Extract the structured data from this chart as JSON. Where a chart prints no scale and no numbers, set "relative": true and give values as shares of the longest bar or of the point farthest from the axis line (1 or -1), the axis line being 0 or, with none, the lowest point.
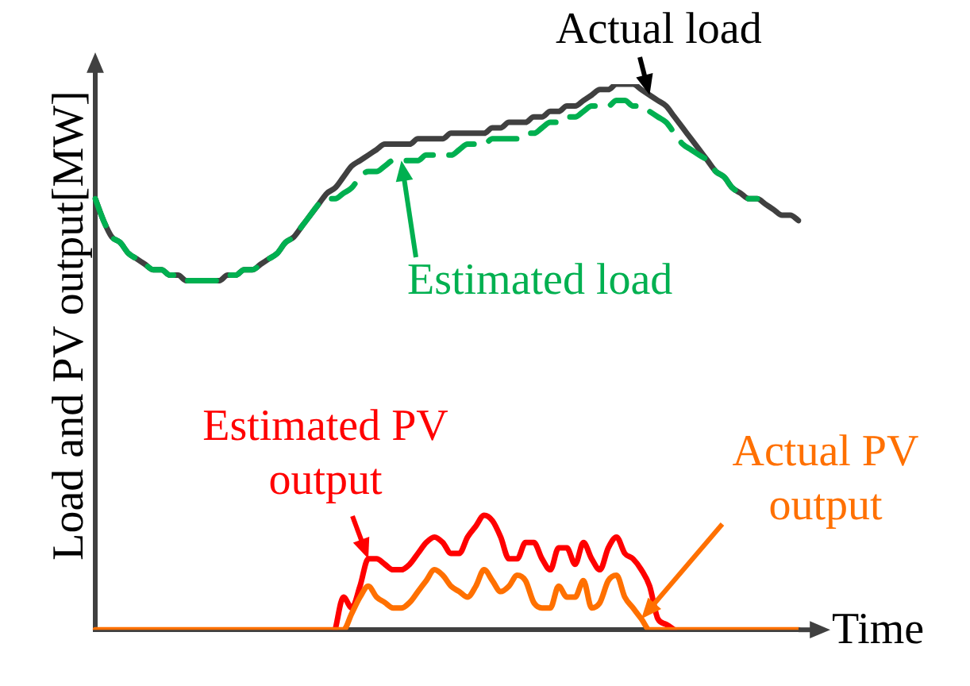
{
  "chart_data": {
    "type": "line",
    "relative": true,
    "xlabel": "Time",
    "ylabel": "Load and PV output[MW]",
    "marker": "none",
    "grid": false,
    "categories": [
      null,
      null,
      null,
      null,
      null,
      null,
      null,
      null,
      null,
      null,
      null,
      null,
      null,
      null,
      null,
      null,
      null,
      null,
      null,
      null,
      null,
      null,
      null,
      null,
      null,
      null,
      null,
      null,
      null,
      null,
      null,
      null,
      null,
      null,
      null,
      null,
      null,
      null,
      null,
      null,
      null,
      null,
      null,
      null,
      null,
      null,
      null,
      null,
      null,
      null,
      null,
      null,
      null,
      null,
      null,
      null,
      null,
      null,
      null,
      null,
      null,
      null,
      null,
      null,
      null,
      null,
      null,
      null,
      null,
      null,
      null,
      null,
      null,
      null,
      null,
      null,
      null,
      null,
      null,
      null,
      null,
      null,
      null,
      null,
      null,
      null
    ],
    "series": [
      {
        "name": "Actual load",
        "color": "#404040",
        "line_style": "solid",
        "values": [
          0.79,
          0.75,
          0.72,
          0.71,
          0.69,
          0.68,
          0.67,
          0.66,
          0.66,
          0.65,
          0.65,
          0.64,
          0.64,
          0.64,
          0.64,
          0.64,
          0.65,
          0.65,
          0.66,
          0.66,
          0.67,
          0.68,
          0.69,
          0.71,
          0.72,
          0.74,
          0.76,
          0.78,
          0.8,
          0.81,
          0.83,
          0.85,
          0.86,
          0.87,
          0.88,
          0.89,
          0.89,
          0.89,
          0.89,
          0.9,
          0.9,
          0.9,
          0.9,
          0.91,
          0.91,
          0.91,
          0.91,
          0.91,
          0.92,
          0.92,
          0.93,
          0.93,
          0.93,
          0.94,
          0.94,
          0.95,
          0.95,
          0.96,
          0.96,
          0.97,
          0.98,
          0.99,
          0.99,
          1,
          1,
          1,
          0.99,
          0.98,
          0.97,
          0.96,
          0.94,
          0.92,
          0.9,
          0.88,
          0.86,
          0.84,
          0.83,
          0.81,
          0.8,
          0.79,
          0.79,
          0.78,
          0.77,
          0.76,
          0.76,
          0.75
        ]
      },
      {
        "name": "Estimated load",
        "color": "#00b050",
        "line_style": "dashed",
        "values": [
          0.79,
          0.75,
          0.72,
          0.71,
          0.69,
          0.68,
          0.67,
          0.66,
          0.66,
          0.65,
          0.65,
          0.64,
          0.64,
          0.64,
          0.64,
          0.64,
          0.65,
          0.65,
          0.66,
          0.66,
          0.67,
          0.68,
          0.69,
          0.71,
          0.72,
          0.74,
          0.76,
          0.78,
          0.79,
          0.79,
          0.8,
          0.81,
          0.83,
          0.84,
          0.84,
          0.85,
          0.86,
          0.86,
          0.86,
          0.86,
          0.87,
          0.87,
          0.87,
          0.87,
          0.88,
          0.89,
          0.89,
          0.89,
          0.9,
          0.9,
          0.9,
          0.9,
          0.91,
          0.91,
          0.92,
          0.93,
          0.93,
          0.94,
          0.94,
          0.95,
          0.96,
          0.96,
          0.96,
          0.97,
          0.97,
          0.96,
          0.96,
          0.95,
          0.94,
          0.93,
          0.91,
          0.89,
          0.88,
          0.87,
          0.86,
          0.84,
          0.83,
          0.81,
          0.8,
          0.79,
          0.79,
          null,
          null,
          null,
          null,
          null
        ]
      },
      {
        "name": "Estimated PV output",
        "color": "#ff0000",
        "line_style": "solid",
        "values": [
          null,
          null,
          null,
          null,
          null,
          null,
          null,
          null,
          null,
          null,
          null,
          null,
          null,
          null,
          null,
          null,
          null,
          null,
          null,
          null,
          null,
          null,
          null,
          null,
          null,
          null,
          null,
          null,
          null,
          0,
          0.06,
          0.04,
          0.08,
          0.13,
          0.13,
          0.12,
          0.11,
          0.11,
          0.12,
          0.14,
          0.16,
          0.17,
          0.16,
          0.14,
          0.14,
          0.17,
          0.19,
          0.21,
          0.2,
          0.17,
          0.13,
          0.13,
          0.16,
          0.16,
          0.13,
          0.11,
          0.15,
          0.15,
          0.12,
          0.16,
          0.13,
          0.11,
          0.15,
          0.17,
          0.14,
          0.13,
          0.11,
          0.08,
          0.02,
          0.01,
          0,
          null,
          null,
          null,
          null,
          null,
          null,
          null,
          null,
          null,
          null,
          null,
          null,
          null,
          null,
          null
        ]
      },
      {
        "name": "Actual PV output",
        "color": "#ff7000",
        "line_style": "solid",
        "values": [
          0,
          0,
          0,
          0,
          0,
          0,
          0,
          0,
          0,
          0,
          0,
          0,
          0,
          0,
          0,
          0,
          0,
          0,
          0,
          0,
          0,
          0,
          0,
          0,
          0,
          0,
          0,
          0,
          0,
          0,
          0,
          0.03,
          0.06,
          0.08,
          0.06,
          0.05,
          0.04,
          0.04,
          0.05,
          0.07,
          0.09,
          0.11,
          0.1,
          0.08,
          0.07,
          0.06,
          0.08,
          0.11,
          0.09,
          0.07,
          0.08,
          0.1,
          0.09,
          0.05,
          0.04,
          0.04,
          0.08,
          0.06,
          0.06,
          0.09,
          0.04,
          0.05,
          0.09,
          0.1,
          0.06,
          0.04,
          0.02,
          0,
          0,
          0,
          0,
          0,
          0,
          0,
          0,
          0,
          0,
          0,
          0,
          0,
          0,
          0,
          0,
          0,
          0,
          0
        ]
      }
    ]
  }
}
